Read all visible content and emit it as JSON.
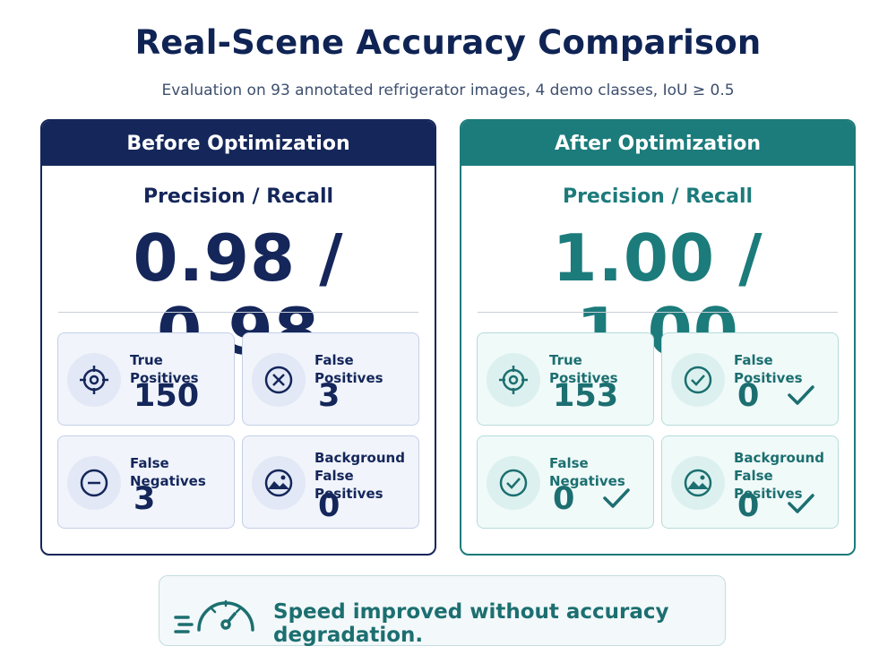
{
  "title": "Real-Scene Accuracy Comparison",
  "subtitle": "Evaluation on 93 annotated refrigerator images, 4 demo classes, IoU ≥ 0.5",
  "panels": {
    "before": {
      "header": "Before Optimization",
      "metric_label": "Precision / Recall",
      "metric_value": "0.98 / 0.98",
      "color": "#14265a",
      "cells": [
        {
          "label": "True Positives",
          "value": "150",
          "icon": "target-icon"
        },
        {
          "label": "False Positives",
          "value": "3",
          "icon": "x-circle-icon"
        },
        {
          "label": "False Negatives",
          "value": "3",
          "icon": "minus-circle-icon"
        },
        {
          "label": "Background False Positives",
          "value": "0",
          "icon": "image-icon"
        }
      ]
    },
    "after": {
      "header": "After Optimization",
      "metric_label": "Precision / Recall",
      "metric_value": "1.00 / 1.00",
      "color": "#1c7b7b",
      "cells": [
        {
          "label": "True Positives",
          "value": "153",
          "icon": "target-icon"
        },
        {
          "label": "False Positives",
          "value": "0",
          "icon": "check-circle-icon"
        },
        {
          "label": "False Negatives",
          "value": "0",
          "icon": "check-circle-icon"
        },
        {
          "label": "Background False Positives",
          "value": "0",
          "icon": "image-icon"
        }
      ]
    }
  },
  "banner": {
    "text": "Speed improved without accuracy degradation.",
    "icon": "speedometer-icon"
  }
}
